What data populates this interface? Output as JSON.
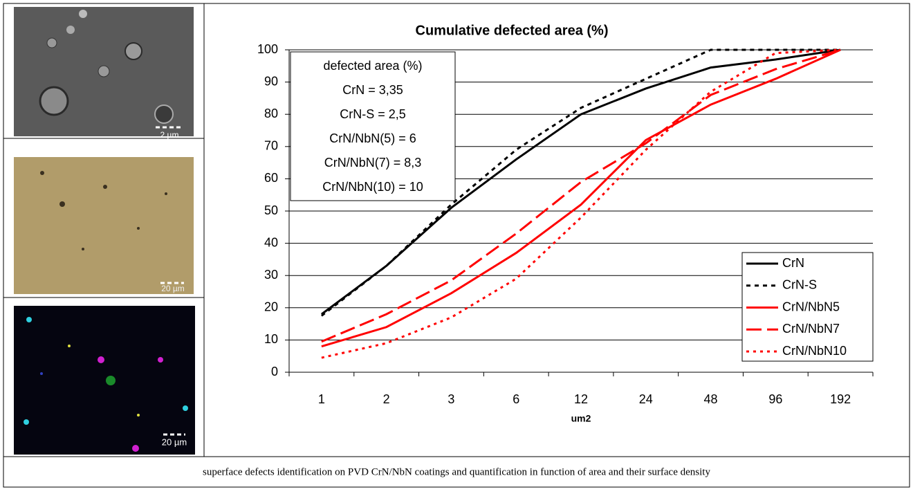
{
  "chart_data": {
    "type": "line",
    "title": "Cumulative defected area (%)",
    "x_label": "um2",
    "categories": [
      "1",
      "2",
      "3",
      "6",
      "12",
      "24",
      "48",
      "96",
      "192"
    ],
    "series": [
      {
        "name": "CrN",
        "color": "#000000",
        "dash": "solid",
        "values": [
          18,
          33,
          51,
          66,
          80,
          88,
          94.5,
          97,
          100
        ]
      },
      {
        "name": "CrN-S",
        "color": "#000000",
        "dash": "short",
        "values": [
          17.5,
          33,
          52,
          69,
          82,
          91,
          100,
          100,
          100
        ]
      },
      {
        "name": "CrN/NbN5",
        "color": "#ff0000",
        "dash": "solid",
        "values": [
          8,
          14,
          24.5,
          37,
          52,
          72,
          83,
          91,
          100
        ]
      },
      {
        "name": "CrN/NbN7",
        "color": "#ff0000",
        "dash": "long",
        "values": [
          9.5,
          18,
          28.5,
          43,
          59,
          71,
          86,
          94,
          100
        ]
      },
      {
        "name": "CrN/NbN10",
        "color": "#ff0000",
        "dash": "dot",
        "values": [
          4.5,
          9,
          17,
          29,
          48,
          69,
          87,
          99,
          100
        ]
      }
    ],
    "ylim": [
      0,
      100
    ],
    "yticks": [
      0,
      10,
      20,
      30,
      40,
      50,
      60,
      70,
      80,
      90,
      100
    ],
    "grid": true,
    "legend": "lower right",
    "annotation": [
      "defected area (%)",
      "CrN = 3,35",
      "CrN-S = 2,5",
      "CrN/NbN(5) = 6",
      "CrN/NbN(7) = 8,3",
      "CrN/NbN(10) = 10"
    ]
  },
  "images": [
    {
      "scale_label": "2 µm"
    },
    {
      "scale_label": "20 µm"
    },
    {
      "scale_label": "20 µm"
    }
  ],
  "caption": "superface defects identification on PVD CrN/NbN coatings and quantification in function of area and their surface density"
}
